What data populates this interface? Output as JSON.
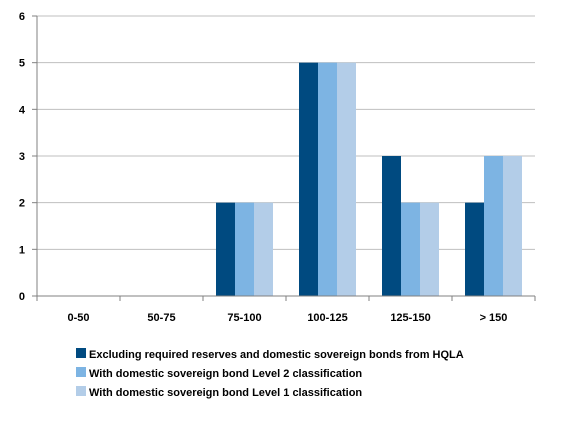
{
  "chart_data": {
    "type": "bar",
    "categories": [
      "0-50",
      "50-75",
      "75-100",
      "100-125",
      "125-150",
      "> 150"
    ],
    "series": [
      {
        "name": "Excluding required reserves and domestic sovereign bonds from HQLA",
        "color": "#004a80",
        "values": [
          0,
          0,
          2,
          5,
          3,
          2
        ]
      },
      {
        "name": "With domestic sovereign bond Level 2 classification",
        "color": "#7db4e3",
        "values": [
          0,
          0,
          2,
          5,
          2,
          3
        ]
      },
      {
        "name": "With domestic sovereign bond Level 1 classification",
        "color": "#b3cde8",
        "values": [
          0,
          0,
          2,
          5,
          2,
          3
        ]
      }
    ],
    "ylim": [
      0,
      6
    ],
    "yticks": [
      0,
      1,
      2,
      3,
      4,
      5,
      6
    ],
    "grid": true,
    "legend_position": "bottom"
  }
}
